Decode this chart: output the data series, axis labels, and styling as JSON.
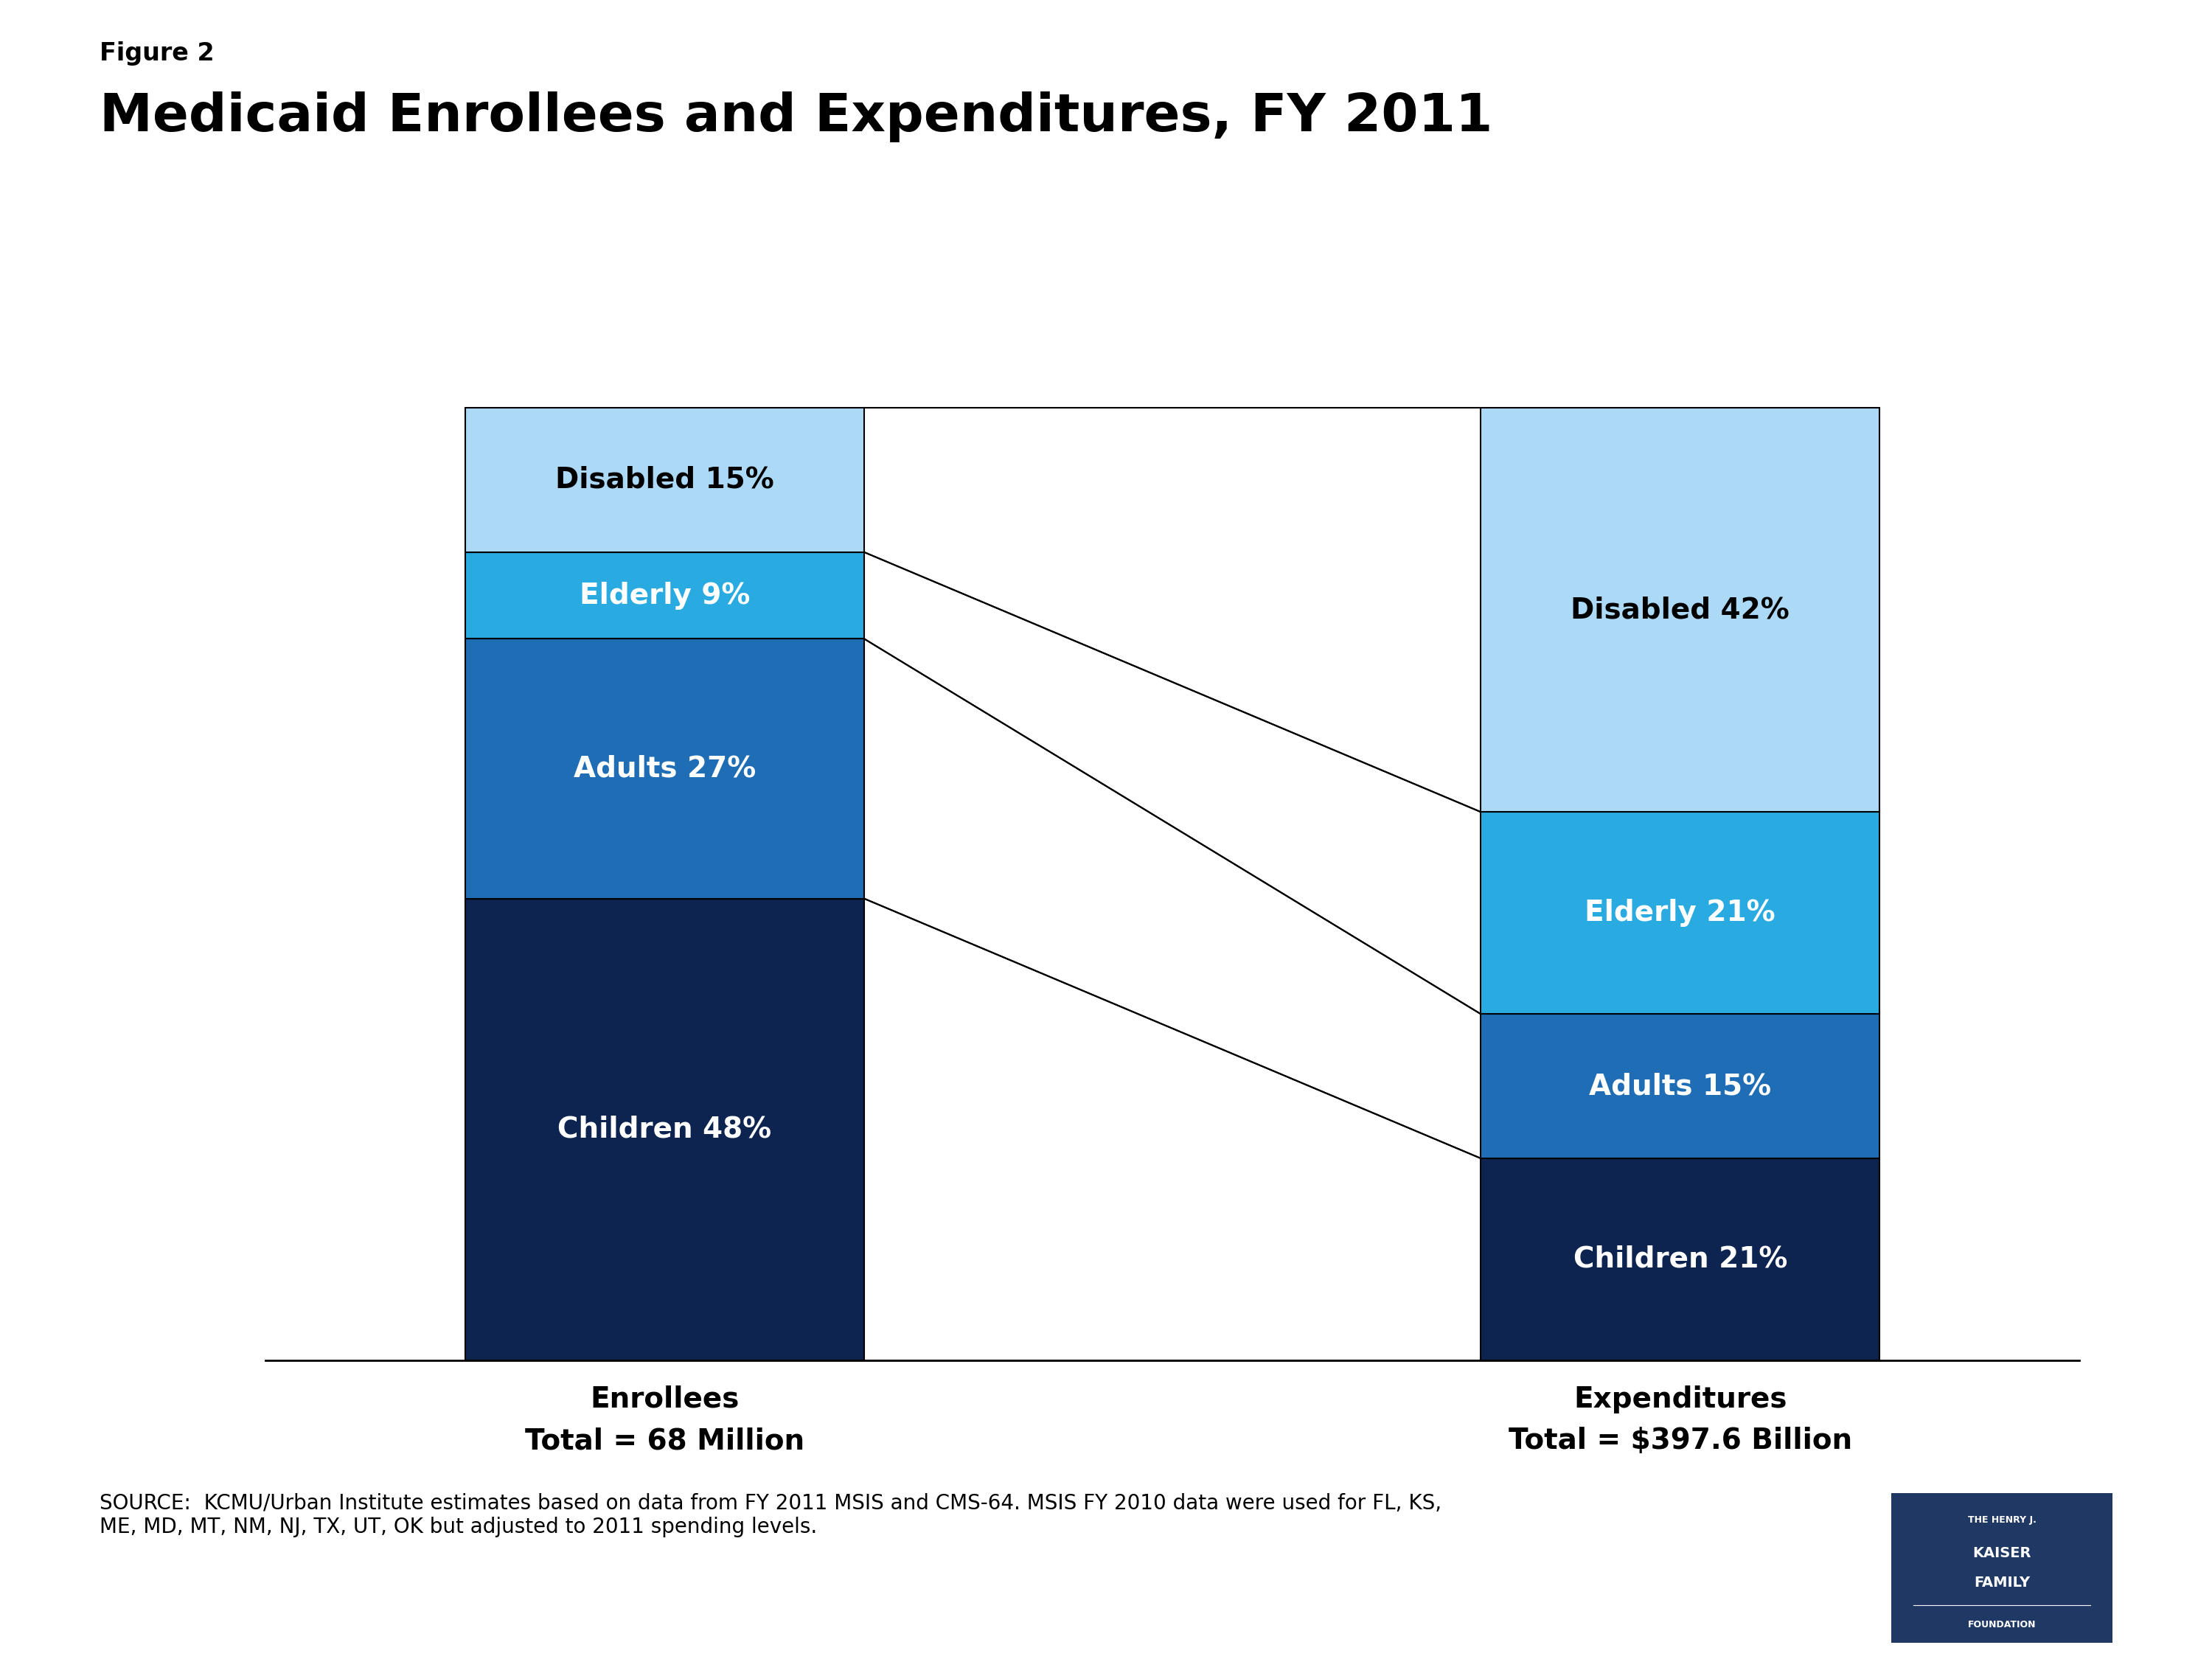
{
  "figure_label": "Figure 2",
  "title": "Medicaid Enrollees and Expenditures, FY 2011",
  "enrollees_line1": "Enrollees",
  "enrollees_line2": "Total = 68 Million",
  "expenditures_line1": "Expenditures",
  "expenditures_line2": "Total = $397.6 Billion",
  "source_text": "SOURCE:  KCMU/Urban Institute estimates based on data from FY 2011 MSIS and CMS-64. MSIS FY 2010 data were used for FL, KS,\nME, MD, MT, NM, NJ, TX, UT, OK but adjusted to 2011 spending levels.",
  "categories": [
    "Children",
    "Adults",
    "Elderly",
    "Disabled"
  ],
  "enrollees": [
    48,
    27,
    9,
    15
  ],
  "expenditures": [
    21,
    15,
    21,
    42
  ],
  "colors": [
    "#0D2350",
    "#1F6EB5",
    "#29ABE2",
    "#ACD9F5"
  ],
  "text_colors": [
    "#FFFFFF",
    "#FFFFFF",
    "#FFFFFF",
    "#000000"
  ],
  "background_color": "#FFFFFF",
  "title_fontsize": 52,
  "figure_label_fontsize": 24,
  "segment_fontsize": 28,
  "xlabel_fontsize": 28,
  "source_fontsize": 20,
  "logo_bg_color": "#1F3864"
}
